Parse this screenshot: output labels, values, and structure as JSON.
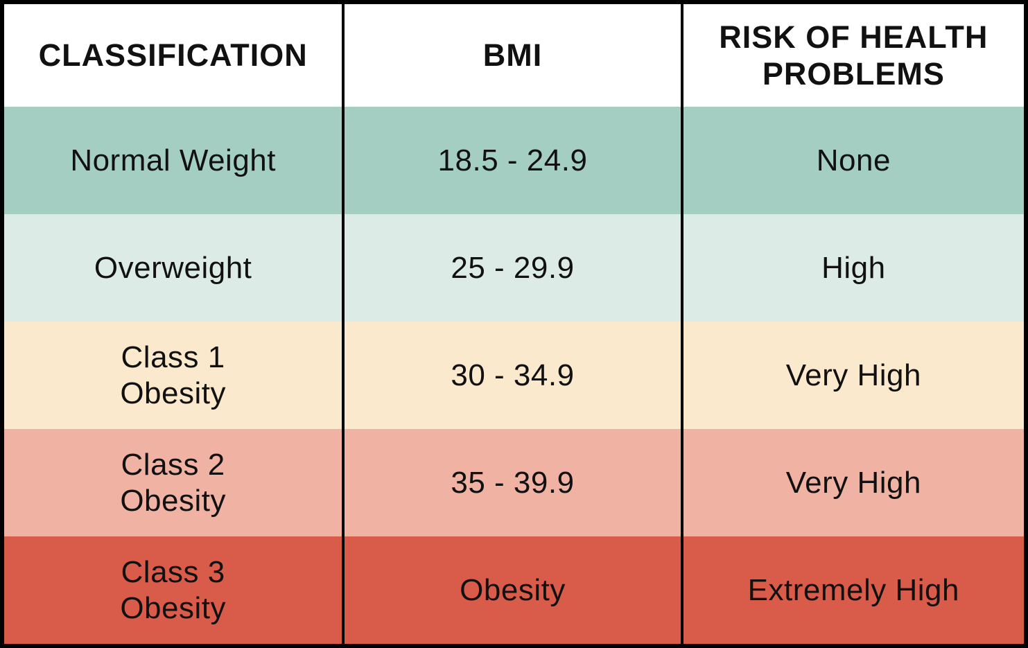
{
  "table": {
    "headers": [
      "CLASSIFICATION",
      "BMI",
      "RISK OF HEALTH\nPROBLEMS"
    ],
    "rows": [
      {
        "classification": "Normal Weight",
        "bmi": "18.5 - 24.9",
        "risk": "None",
        "color": "#a5cec2"
      },
      {
        "classification": "Overweight",
        "bmi": "25 - 29.9",
        "risk": "High",
        "color": "#dcebe5"
      },
      {
        "classification": "Class 1\nObesity",
        "bmi": "30 - 34.9",
        "risk": "Very High",
        "color": "#fbe9cd"
      },
      {
        "classification": "Class 2\nObesity",
        "bmi": "35 - 39.9",
        "risk": "Very High",
        "color": "#efb2a3"
      },
      {
        "classification": "Class 3\nObesity",
        "bmi": "Obesity",
        "risk": "Extremely High",
        "color": "#d85c49"
      }
    ],
    "colors": {
      "header_background": "#ffffff",
      "border": "#000000",
      "text": "#111111"
    }
  },
  "chart_data": {
    "type": "table",
    "title": "",
    "columns": [
      "CLASSIFICATION",
      "BMI",
      "RISK OF HEALTH PROBLEMS"
    ],
    "rows": [
      [
        "Normal Weight",
        "18.5 - 24.9",
        "None"
      ],
      [
        "Overweight",
        "25 - 29.9",
        "High"
      ],
      [
        "Class 1 Obesity",
        "30 - 34.9",
        "Very High"
      ],
      [
        "Class 2 Obesity",
        "35 - 39.9",
        "Very High"
      ],
      [
        "Class 3 Obesity",
        "Obesity",
        "Extremely High"
      ]
    ],
    "row_colors": [
      "#a5cec2",
      "#dcebe5",
      "#fbe9cd",
      "#efb2a3",
      "#d85c49"
    ],
    "layout": {
      "header_background": "#ffffff",
      "grid": "vertical-dividers-only",
      "border": "black"
    }
  }
}
